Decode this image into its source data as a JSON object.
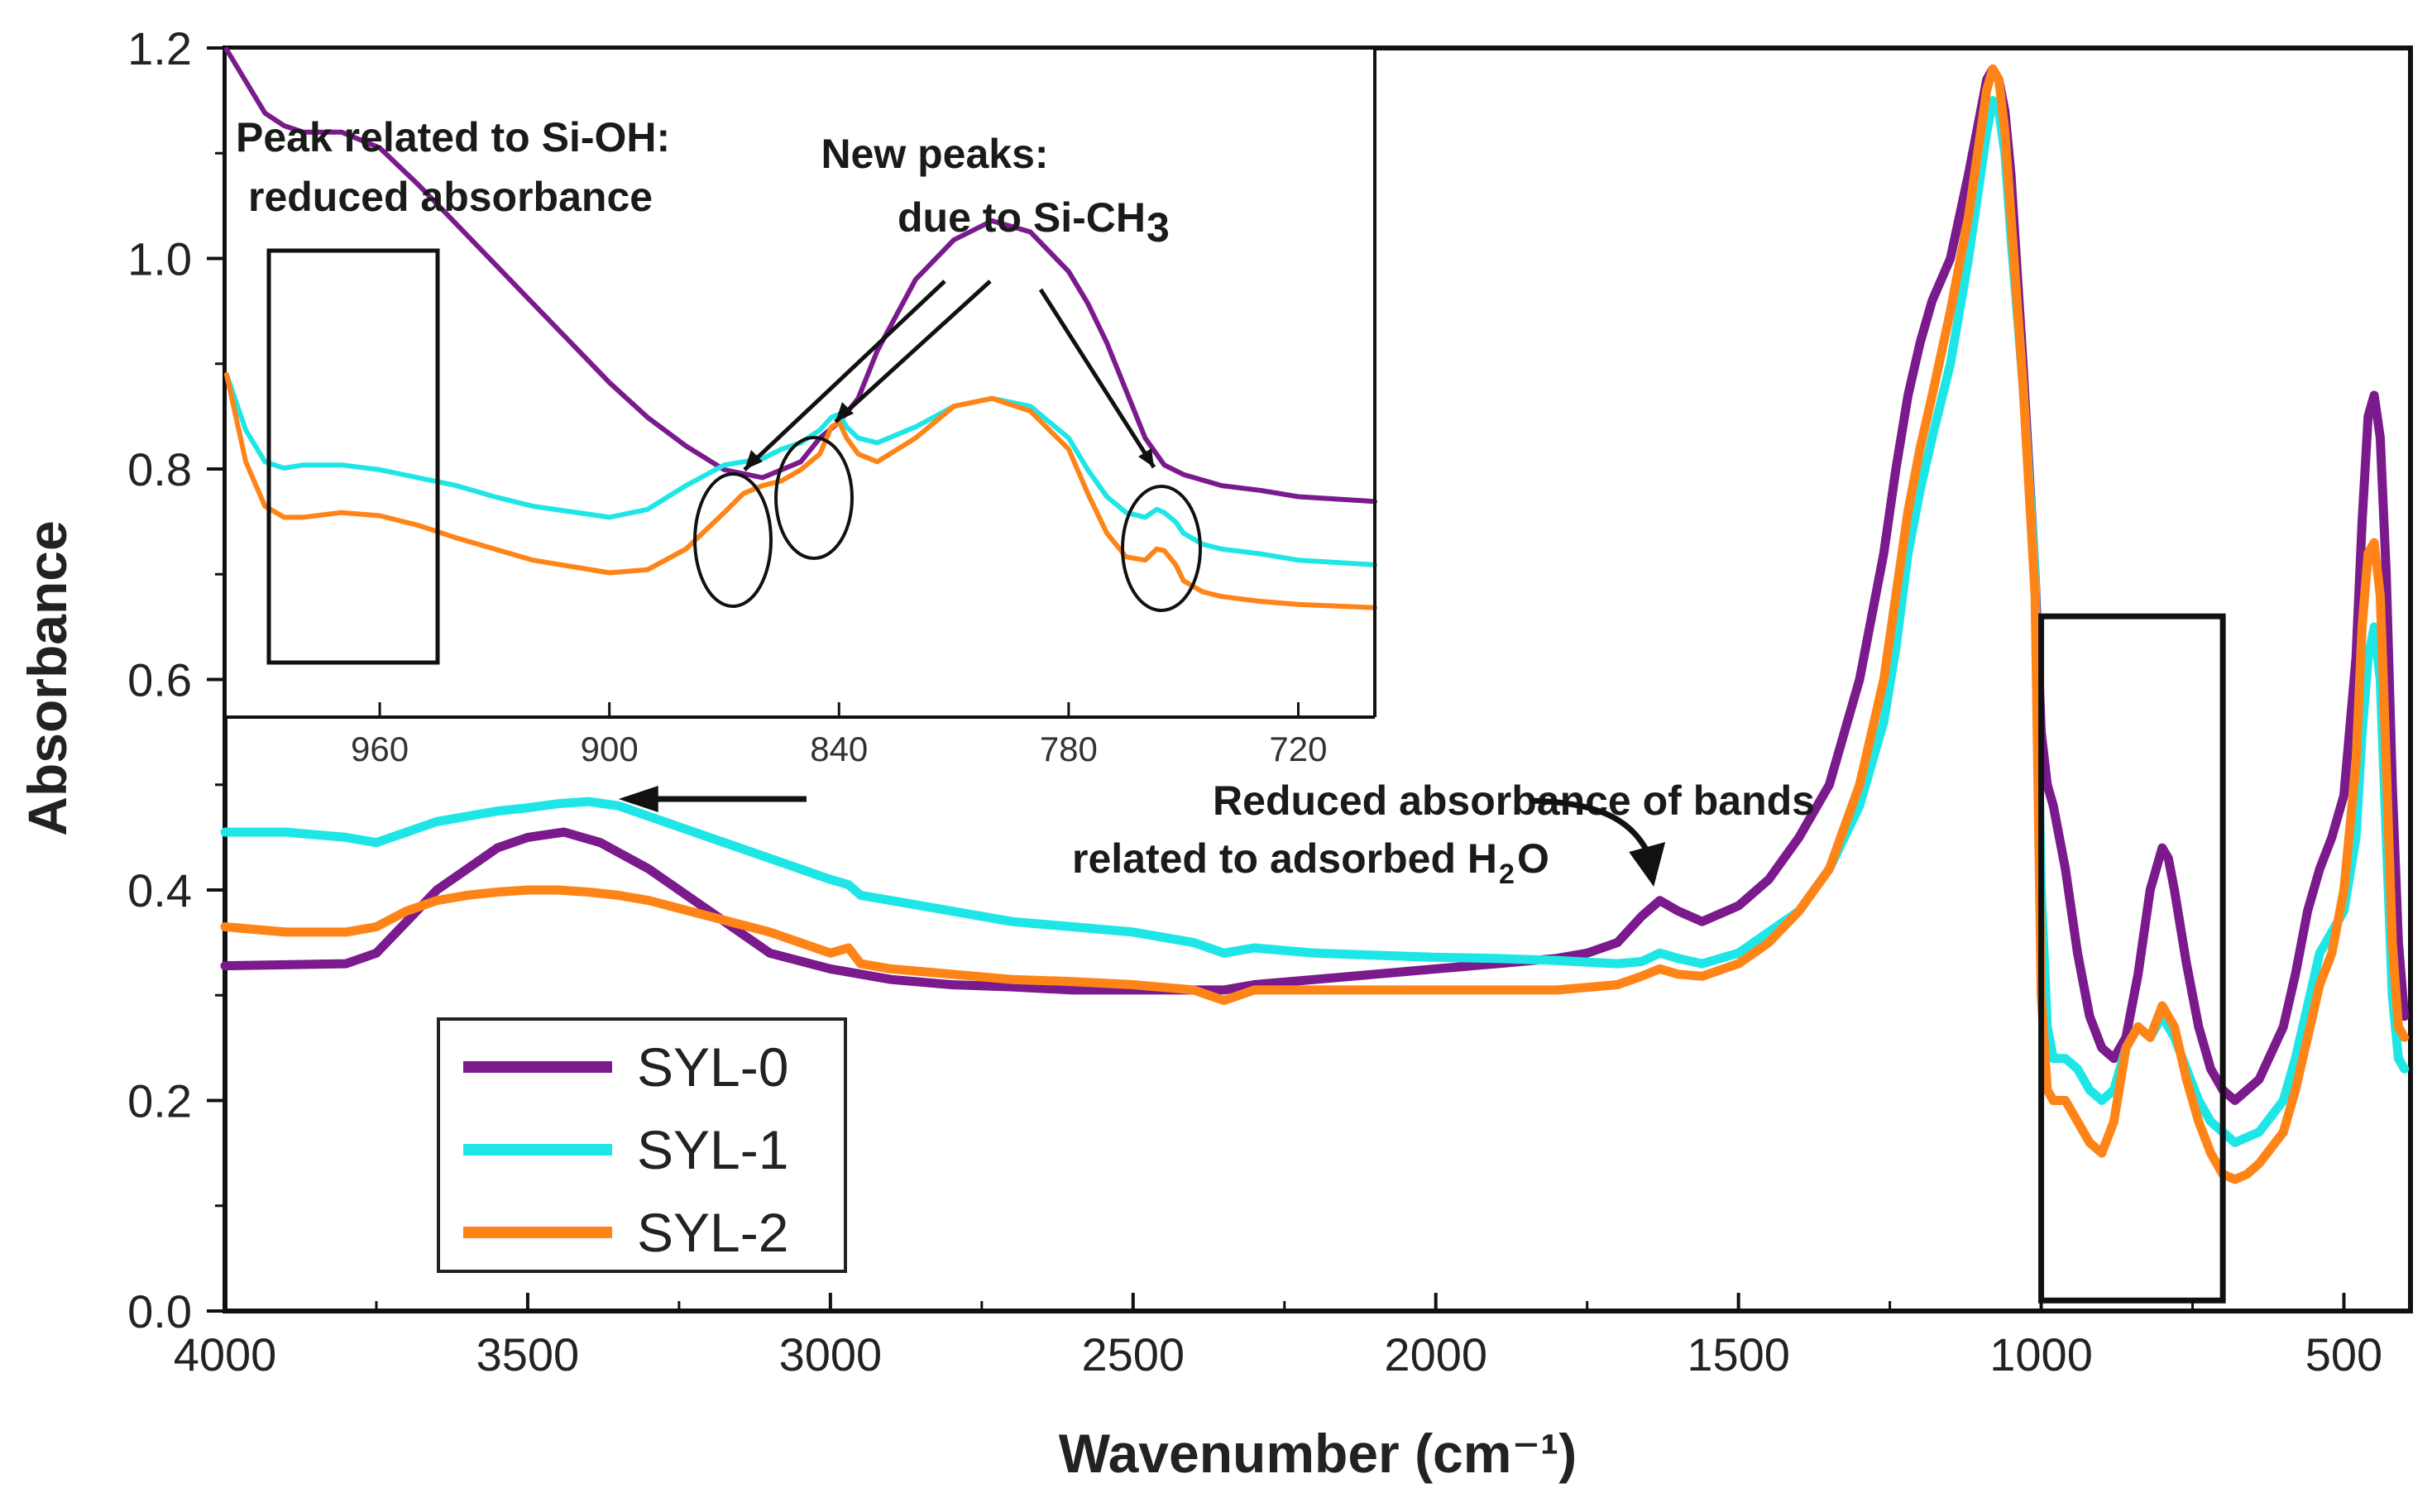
{
  "chart_data": {
    "type": "line",
    "xlabel": "Wavenumber (cm⁻¹)",
    "ylabel": "Absorbance",
    "xlim": [
      4000,
      390
    ],
    "ylim": [
      0,
      1.2
    ],
    "x_ticks": [
      {
        "value": 4000,
        "label": "4000"
      },
      {
        "value": 3500,
        "label": "3500"
      },
      {
        "value": 3000,
        "label": "3000"
      },
      {
        "value": 2500,
        "label": "2500"
      },
      {
        "value": 2000,
        "label": "2000"
      },
      {
        "value": 1500,
        "label": "1500"
      },
      {
        "value": 1000,
        "label": "1000"
      },
      {
        "value": 500,
        "label": "500"
      }
    ],
    "y_ticks": [
      {
        "value": 0.0,
        "label": "0.0"
      },
      {
        "value": 0.2,
        "label": "0.2"
      },
      {
        "value": 0.4,
        "label": "0.4"
      },
      {
        "value": 0.6,
        "label": "0.6"
      },
      {
        "value": 0.8,
        "label": "0.8"
      },
      {
        "value": 1.0,
        "label": "1.0"
      },
      {
        "value": 1.2,
        "label": "1.2"
      }
    ],
    "series": [
      {
        "name": "SYL-0",
        "color": "#7a1a8c",
        "x": [
          4000,
          3800,
          3750,
          3700,
          3650,
          3600,
          3550,
          3500,
          3440,
          3380,
          3300,
          3200,
          3100,
          3000,
          2900,
          2800,
          2700,
          2600,
          2500,
          2400,
          2350,
          2300,
          2200,
          2100,
          2000,
          1900,
          1800,
          1750,
          1700,
          1660,
          1630,
          1600,
          1560,
          1500,
          1450,
          1400,
          1350,
          1300,
          1260,
          1240,
          1220,
          1200,
          1180,
          1150,
          1120,
          1100,
          1090,
          1080,
          1070,
          1060,
          1050,
          1030,
          1010,
          1000,
          990,
          980,
          960,
          940,
          920,
          900,
          880,
          860,
          840,
          820,
          800,
          790,
          780,
          760,
          740,
          720,
          700,
          680,
          660,
          640,
          600,
          580,
          560,
          540,
          520,
          500,
          480,
          470,
          460,
          450,
          440,
          430,
          420,
          410,
          400
        ],
        "y": [
          0.328,
          0.33,
          0.34,
          0.37,
          0.4,
          0.42,
          0.44,
          0.45,
          0.455,
          0.445,
          0.42,
          0.38,
          0.34,
          0.325,
          0.315,
          0.31,
          0.308,
          0.305,
          0.305,
          0.305,
          0.305,
          0.31,
          0.315,
          0.32,
          0.325,
          0.33,
          0.335,
          0.34,
          0.35,
          0.375,
          0.39,
          0.38,
          0.37,
          0.385,
          0.41,
          0.45,
          0.5,
          0.6,
          0.72,
          0.8,
          0.87,
          0.92,
          0.96,
          1.0,
          1.08,
          1.14,
          1.17,
          1.18,
          1.17,
          1.14,
          1.08,
          0.9,
          0.7,
          0.55,
          0.5,
          0.48,
          0.42,
          0.34,
          0.28,
          0.25,
          0.24,
          0.26,
          0.32,
          0.4,
          0.44,
          0.43,
          0.4,
          0.33,
          0.27,
          0.23,
          0.21,
          0.2,
          0.21,
          0.22,
          0.27,
          0.32,
          0.38,
          0.42,
          0.45,
          0.49,
          0.62,
          0.75,
          0.85,
          0.87,
          0.83,
          0.7,
          0.5,
          0.35,
          0.28
        ]
      },
      {
        "name": "SYL-1",
        "color": "#1fe6e6",
        "x": [
          4000,
          3900,
          3800,
          3750,
          3700,
          3650,
          3600,
          3550,
          3500,
          3450,
          3400,
          3350,
          3300,
          3200,
          3100,
          3000,
          2970,
          2950,
          2900,
          2800,
          2700,
          2600,
          2500,
          2400,
          2350,
          2300,
          2200,
          2100,
          2000,
          1900,
          1800,
          1700,
          1660,
          1630,
          1600,
          1560,
          1500,
          1450,
          1400,
          1350,
          1300,
          1260,
          1240,
          1220,
          1200,
          1180,
          1150,
          1120,
          1100,
          1090,
          1080,
          1070,
          1060,
          1050,
          1030,
          1010,
          1000,
          990,
          980,
          960,
          940,
          920,
          900,
          880,
          860,
          840,
          820,
          800,
          780,
          760,
          740,
          720,
          700,
          680,
          660,
          640,
          600,
          580,
          560,
          540,
          520,
          500,
          480,
          470,
          460,
          450,
          440,
          430,
          420,
          410,
          400
        ],
        "y": [
          0.455,
          0.455,
          0.45,
          0.445,
          0.455,
          0.465,
          0.47,
          0.475,
          0.478,
          0.482,
          0.484,
          0.48,
          0.47,
          0.45,
          0.43,
          0.41,
          0.405,
          0.395,
          0.39,
          0.38,
          0.37,
          0.365,
          0.36,
          0.35,
          0.34,
          0.345,
          0.34,
          0.338,
          0.336,
          0.335,
          0.333,
          0.33,
          0.332,
          0.34,
          0.335,
          0.33,
          0.34,
          0.36,
          0.38,
          0.42,
          0.48,
          0.56,
          0.63,
          0.72,
          0.78,
          0.83,
          0.9,
          1.0,
          1.08,
          1.12,
          1.15,
          1.14,
          1.1,
          1.02,
          0.88,
          0.7,
          0.4,
          0.27,
          0.24,
          0.24,
          0.23,
          0.21,
          0.2,
          0.21,
          0.25,
          0.27,
          0.26,
          0.28,
          0.26,
          0.23,
          0.2,
          0.18,
          0.17,
          0.16,
          0.165,
          0.17,
          0.2,
          0.24,
          0.29,
          0.34,
          0.36,
          0.38,
          0.45,
          0.55,
          0.62,
          0.65,
          0.6,
          0.45,
          0.3,
          0.24,
          0.23
        ]
      },
      {
        "name": "SYL-2",
        "color": "#ff8418",
        "x": [
          4000,
          3900,
          3800,
          3750,
          3700,
          3650,
          3600,
          3550,
          3500,
          3450,
          3400,
          3350,
          3300,
          3200,
          3100,
          3000,
          2970,
          2950,
          2900,
          2800,
          2700,
          2600,
          2500,
          2400,
          2350,
          2300,
          2200,
          2100,
          2000,
          1900,
          1800,
          1700,
          1660,
          1630,
          1600,
          1560,
          1500,
          1450,
          1400,
          1350,
          1300,
          1260,
          1240,
          1220,
          1200,
          1180,
          1150,
          1120,
          1100,
          1090,
          1080,
          1070,
          1060,
          1050,
          1030,
          1010,
          1000,
          990,
          980,
          960,
          940,
          920,
          900,
          880,
          860,
          840,
          820,
          800,
          780,
          760,
          740,
          720,
          700,
          680,
          660,
          640,
          600,
          580,
          560,
          540,
          520,
          500,
          480,
          470,
          460,
          450,
          440,
          430,
          420,
          410,
          400
        ],
        "y": [
          0.365,
          0.36,
          0.36,
          0.365,
          0.38,
          0.39,
          0.395,
          0.398,
          0.4,
          0.4,
          0.398,
          0.395,
          0.39,
          0.375,
          0.36,
          0.34,
          0.345,
          0.33,
          0.325,
          0.32,
          0.315,
          0.313,
          0.31,
          0.305,
          0.295,
          0.305,
          0.305,
          0.305,
          0.305,
          0.305,
          0.305,
          0.31,
          0.318,
          0.325,
          0.32,
          0.318,
          0.33,
          0.35,
          0.38,
          0.42,
          0.5,
          0.6,
          0.68,
          0.76,
          0.82,
          0.87,
          0.95,
          1.04,
          1.12,
          1.16,
          1.18,
          1.17,
          1.12,
          1.04,
          0.88,
          0.68,
          0.3,
          0.21,
          0.2,
          0.2,
          0.18,
          0.16,
          0.15,
          0.18,
          0.25,
          0.27,
          0.26,
          0.29,
          0.27,
          0.22,
          0.18,
          0.15,
          0.13,
          0.125,
          0.13,
          0.14,
          0.17,
          0.21,
          0.26,
          0.31,
          0.34,
          0.4,
          0.52,
          0.65,
          0.72,
          0.73,
          0.68,
          0.52,
          0.35,
          0.27,
          0.26
        ]
      }
    ],
    "legend": {
      "position": "bottom-left",
      "entries": [
        {
          "label": "SYL-0",
          "color": "#7a1a8c"
        },
        {
          "label": "SYL-1",
          "color": "#1fe6e6"
        },
        {
          "label": "SYL-2",
          "color": "#ff8418"
        }
      ]
    },
    "highlight_box": {
      "x_range": [
        1000,
        700
      ],
      "y_range": [
        0.01,
        0.66
      ]
    },
    "annotation": {
      "line1": "Reduced absorbance of bands",
      "line2_a": "related to adsorbed H",
      "line2_sub": "2",
      "line2_b": "O",
      "arrow_left_target_x": 3350,
      "arrow_curve_target_x": 1640
    },
    "inset": {
      "xlim": [
        1000,
        700
      ],
      "ylim": [
        0.6,
        1.02
      ],
      "x_ticks": [
        {
          "value": 960,
          "label": "960"
        },
        {
          "value": 900,
          "label": "900"
        },
        {
          "value": 840,
          "label": "840"
        },
        {
          "value": 780,
          "label": "780"
        },
        {
          "value": 720,
          "label": "720"
        }
      ],
      "series": [
        {
          "name": "SYL-0",
          "color": "#7a1a8c",
          "x": [
            1000,
            990,
            985,
            980,
            975,
            970,
            960,
            950,
            940,
            930,
            920,
            910,
            900,
            890,
            880,
            870,
            860,
            850,
            845,
            840,
            835,
            830,
            820,
            810,
            800,
            790,
            780,
            775,
            770,
            765,
            760,
            755,
            750,
            740,
            730,
            720,
            700
          ],
          "y": [
            1.02,
            0.98,
            0.972,
            0.968,
            0.968,
            0.968,
            0.958,
            0.935,
            0.91,
            0.885,
            0.86,
            0.835,
            0.81,
            0.788,
            0.77,
            0.755,
            0.75,
            0.76,
            0.775,
            0.785,
            0.8,
            0.83,
            0.875,
            0.9,
            0.912,
            0.905,
            0.88,
            0.86,
            0.835,
            0.805,
            0.775,
            0.758,
            0.752,
            0.745,
            0.742,
            0.738,
            0.735
          ]
        },
        {
          "name": "SYL-1",
          "color": "#1fe6e6",
          "x": [
            1000,
            995,
            990,
            985,
            980,
            970,
            960,
            950,
            940,
            930,
            920,
            900,
            890,
            880,
            870,
            865,
            860,
            855,
            850,
            845,
            842,
            840,
            838,
            835,
            830,
            820,
            810,
            800,
            790,
            780,
            775,
            770,
            765,
            760,
            757,
            755,
            752,
            750,
            745,
            740,
            730,
            720,
            700
          ],
          "y": [
            0.815,
            0.78,
            0.76,
            0.756,
            0.758,
            0.758,
            0.755,
            0.75,
            0.745,
            0.738,
            0.732,
            0.725,
            0.73,
            0.745,
            0.758,
            0.76,
            0.762,
            0.768,
            0.772,
            0.78,
            0.788,
            0.79,
            0.782,
            0.775,
            0.772,
            0.782,
            0.795,
            0.8,
            0.795,
            0.775,
            0.755,
            0.738,
            0.728,
            0.725,
            0.73,
            0.728,
            0.722,
            0.715,
            0.708,
            0.705,
            0.702,
            0.698,
            0.695
          ]
        },
        {
          "name": "SYL-2",
          "color": "#ff8418",
          "x": [
            1000,
            995,
            990,
            985,
            980,
            970,
            960,
            950,
            940,
            930,
            920,
            900,
            890,
            880,
            870,
            865,
            860,
            855,
            850,
            845,
            842,
            840,
            838,
            835,
            830,
            820,
            810,
            800,
            790,
            780,
            775,
            770,
            765,
            760,
            757,
            755,
            752,
            750,
            745,
            740,
            730,
            720,
            700
          ],
          "y": [
            0.815,
            0.76,
            0.732,
            0.725,
            0.725,
            0.728,
            0.726,
            0.72,
            0.712,
            0.705,
            0.698,
            0.69,
            0.692,
            0.705,
            0.728,
            0.74,
            0.745,
            0.748,
            0.755,
            0.765,
            0.782,
            0.785,
            0.775,
            0.765,
            0.76,
            0.775,
            0.795,
            0.8,
            0.792,
            0.768,
            0.74,
            0.715,
            0.7,
            0.698,
            0.705,
            0.704,
            0.695,
            0.685,
            0.678,
            0.675,
            0.672,
            0.67,
            0.668
          ]
        }
      ],
      "note_left_line1": "Peak related to Si-OH:",
      "note_left_line2": "reduced absorbance",
      "note_right_line1": "New peaks:",
      "note_right_line2_a": "due to Si-CH",
      "note_right_line2_sub": "3"
    }
  }
}
